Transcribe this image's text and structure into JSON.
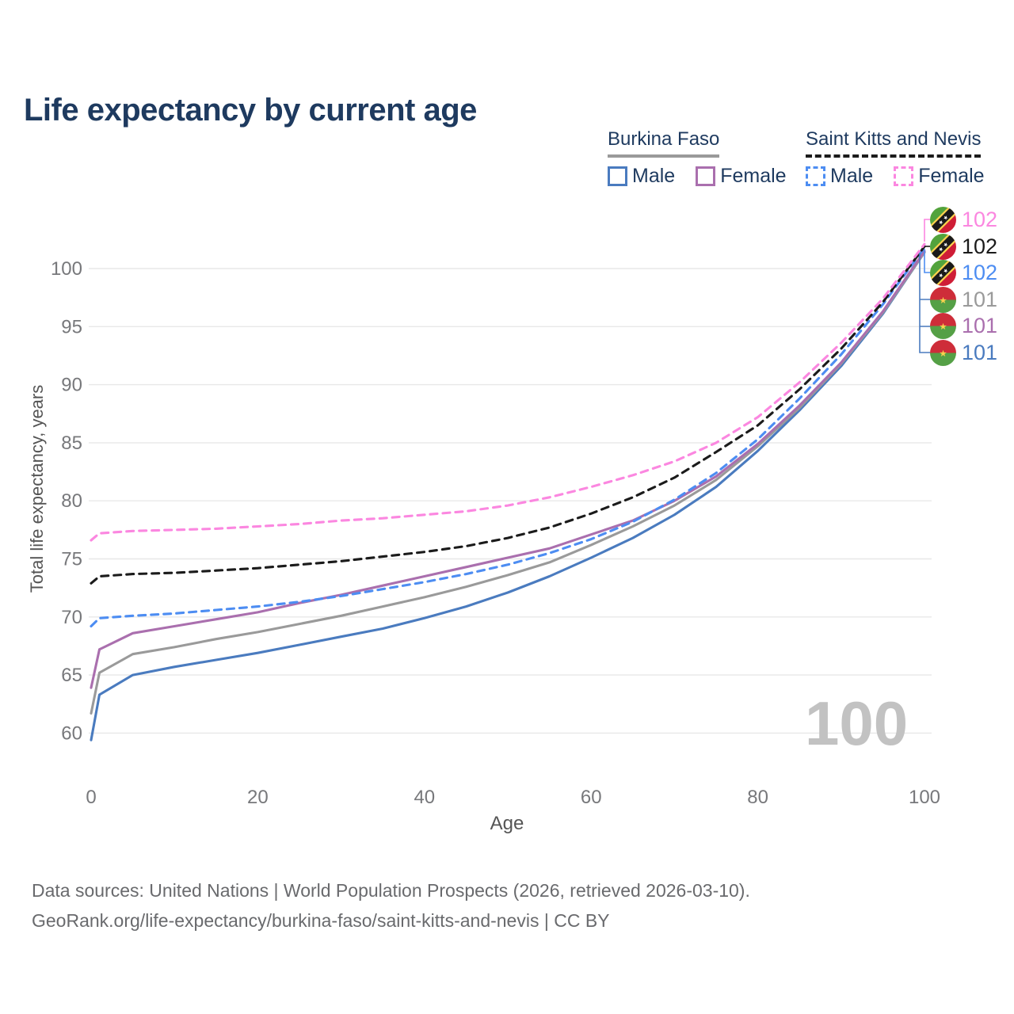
{
  "title": "Life expectancy by current age",
  "legend": {
    "groups": [
      {
        "country": "Burkina Faso",
        "underline_style": "solid",
        "underline_color": "#9a9a9a",
        "items": [
          {
            "label": "Male",
            "color": "#4a7bbf",
            "style": "solid"
          },
          {
            "label": "Female",
            "color": "#aa6fae",
            "style": "solid"
          }
        ]
      },
      {
        "country": "Saint Kitts and Nevis",
        "underline_style": "dashed",
        "underline_color": "#1b1b1b",
        "items": [
          {
            "label": "Male",
            "color": "#4d8df2",
            "style": "dashed"
          },
          {
            "label": "Female",
            "color": "#fb87e0",
            "style": "dashed"
          }
        ]
      }
    ]
  },
  "axes": {
    "x_label": "Age",
    "y_label": "Total life expectancy, years",
    "x_ticks": [
      0,
      20,
      40,
      60,
      80,
      100
    ],
    "y_ticks": [
      60,
      65,
      70,
      75,
      80,
      85,
      90,
      95,
      100
    ]
  },
  "watermark": "100",
  "end_labels": [
    {
      "flag": "kn",
      "country": "Saint Kitts and Nevis",
      "series": "Female",
      "value": "102",
      "color": "#fb87e0"
    },
    {
      "flag": "kn",
      "country": "Saint Kitts and Nevis",
      "series": "All",
      "value": "102",
      "color": "#1b1b1b"
    },
    {
      "flag": "kn",
      "country": "Saint Kitts and Nevis",
      "series": "Male",
      "value": "102",
      "color": "#4d8df2"
    },
    {
      "flag": "bf",
      "country": "Burkina Faso",
      "series": "All",
      "value": "101",
      "color": "#9a9a9a"
    },
    {
      "flag": "bf",
      "country": "Burkina Faso",
      "series": "Female",
      "value": "101",
      "color": "#aa6fae"
    },
    {
      "flag": "bf",
      "country": "Burkina Faso",
      "series": "Male",
      "value": "101",
      "color": "#4a7bbf"
    }
  ],
  "footer": {
    "line1": "Data sources: United Nations | World Population Prospects (2026, retrieved 2026-03-10).",
    "line2": "GeoRank.org/life-expectancy/burkina-faso/saint-kitts-and-nevis | CC BY"
  },
  "chart_data": {
    "type": "line",
    "title": "Life expectancy by current age",
    "xlabel": "Age",
    "ylabel": "Total life expectancy, years",
    "xlim": [
      0,
      100
    ],
    "ylim": [
      58,
      103
    ],
    "xticks": [
      0,
      20,
      40,
      60,
      80,
      100
    ],
    "yticks": [
      60,
      65,
      70,
      75,
      80,
      85,
      90,
      95,
      100
    ],
    "grid": "horizontal",
    "legend_position": "top-right",
    "x": [
      0,
      1,
      5,
      10,
      15,
      20,
      25,
      30,
      35,
      40,
      45,
      50,
      55,
      60,
      65,
      70,
      75,
      80,
      85,
      90,
      95,
      100
    ],
    "series": [
      {
        "name": "Burkina Faso — Male",
        "country": "bf",
        "sex": "male",
        "line_style": "solid",
        "color": "#4a7bbf",
        "end_label": 101,
        "values": [
          59.4,
          63.3,
          65.0,
          65.7,
          66.3,
          66.9,
          67.6,
          68.3,
          69.0,
          69.9,
          70.9,
          72.1,
          73.5,
          75.1,
          76.8,
          78.8,
          81.2,
          84.3,
          87.8,
          91.6,
          96.1,
          101.4
        ]
      },
      {
        "name": "Burkina Faso — All",
        "country": "bf",
        "sex": "all",
        "line_style": "solid",
        "color": "#9a9a9a",
        "end_label": 101,
        "values": [
          61.7,
          65.2,
          66.8,
          67.4,
          68.1,
          68.7,
          69.4,
          70.1,
          70.9,
          71.7,
          72.6,
          73.6,
          74.7,
          76.2,
          77.8,
          79.6,
          81.8,
          84.7,
          88.0,
          91.8,
          96.2,
          101.4
        ]
      },
      {
        "name": "Burkina Faso — Female",
        "country": "bf",
        "sex": "female",
        "line_style": "solid",
        "color": "#aa6fae",
        "end_label": 101,
        "values": [
          63.9,
          67.2,
          68.6,
          69.2,
          69.8,
          70.4,
          71.2,
          71.9,
          72.7,
          73.5,
          74.3,
          75.1,
          75.9,
          77.1,
          78.3,
          80.0,
          82.1,
          84.9,
          88.2,
          91.9,
          96.3,
          101.5
        ]
      },
      {
        "name": "Saint Kitts and Nevis — Male",
        "country": "kn",
        "sex": "male",
        "line_style": "dashed",
        "color": "#4d8df2",
        "end_label": 102,
        "values": [
          69.2,
          69.9,
          70.1,
          70.3,
          70.6,
          70.9,
          71.3,
          71.8,
          72.4,
          73.0,
          73.7,
          74.5,
          75.5,
          76.7,
          78.2,
          80.1,
          82.4,
          85.3,
          88.8,
          92.6,
          96.9,
          101.8
        ]
      },
      {
        "name": "Saint Kitts and Nevis — All",
        "country": "kn",
        "sex": "all",
        "line_style": "dashed",
        "color": "#1b1b1b",
        "end_label": 102,
        "values": [
          72.9,
          73.5,
          73.7,
          73.8,
          74.0,
          74.2,
          74.5,
          74.8,
          75.2,
          75.6,
          76.1,
          76.8,
          77.7,
          78.9,
          80.3,
          82.0,
          84.2,
          86.5,
          89.6,
          93.1,
          97.1,
          101.9
        ]
      },
      {
        "name": "Saint Kitts and Nevis — Female",
        "country": "kn",
        "sex": "female",
        "line_style": "dashed",
        "color": "#fb87e0",
        "end_label": 102,
        "values": [
          76.6,
          77.2,
          77.4,
          77.5,
          77.6,
          77.8,
          78.0,
          78.3,
          78.5,
          78.8,
          79.1,
          79.6,
          80.3,
          81.2,
          82.2,
          83.4,
          85.0,
          87.2,
          90.2,
          93.6,
          97.4,
          102.1
        ]
      }
    ]
  }
}
